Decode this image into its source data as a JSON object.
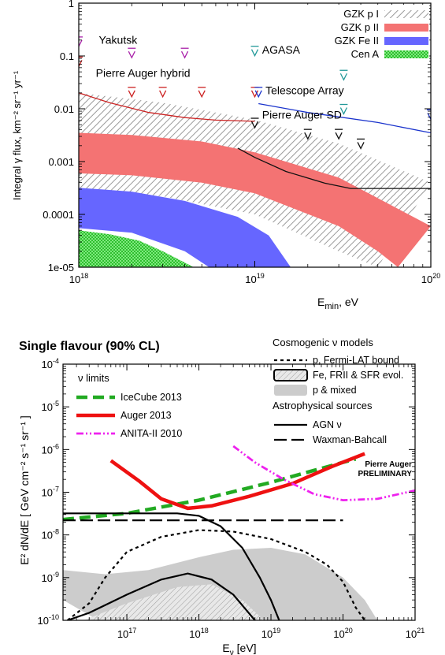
{
  "chart_data": [
    {
      "type": "area",
      "xscale": "log",
      "yscale": "log",
      "xlim": [
        1e+18,
        1e+20
      ],
      "ylim": [
        1e-05,
        1
      ],
      "xlabel": "E",
      "xlabel_sub": "min",
      "xlabel_unit": ", eV",
      "ylabel": "Integral γ flux, km⁻² sr⁻¹ yr⁻¹",
      "xticks": [
        {
          "v": 1e+18,
          "base": "10",
          "exp": "18"
        },
        {
          "v": 1e+19,
          "base": "10",
          "exp": "19"
        },
        {
          "v": 1e+20,
          "base": "10",
          "exp": "20"
        }
      ],
      "yticks": [
        {
          "v": 1,
          "label": "1"
        },
        {
          "v": 0.1,
          "label": "0.1"
        },
        {
          "v": 0.01,
          "label": "0.01"
        },
        {
          "v": 0.001,
          "label": "0.001"
        },
        {
          "v": 0.0001,
          "label": "0.0001"
        },
        {
          "v": 1e-05,
          "label": "1e-05"
        }
      ],
      "legend_position": "top-right",
      "bands": [
        {
          "name": "GZK p I",
          "color": "#b0b0b0",
          "fill": "hatch",
          "upper": [
            [
              1e+18,
              0.02
            ],
            [
              3e+18,
              0.013
            ],
            [
              1e+19,
              0.0062
            ],
            [
              3e+19,
              0.0022
            ],
            [
              1e+20,
              0.0004
            ]
          ],
          "lower": [
            [
              1e+18,
              0.00028
            ],
            [
              3e+18,
              0.00022
            ],
            [
              1e+19,
              0.0001
            ],
            [
              3e+19,
              2e-05
            ],
            [
              5e+19,
              1e-05
            ]
          ]
        },
        {
          "name": "GZK p II",
          "color": "#f47373",
          "fill": "solid",
          "upper": [
            [
              1e+18,
              0.0035
            ],
            [
              2e+18,
              0.0032
            ],
            [
              5e+18,
              0.0024
            ],
            [
              1e+19,
              0.0015
            ],
            [
              3e+19,
              0.0005
            ],
            [
              1e+20,
              6e-05
            ]
          ],
          "lower": [
            [
              1e+18,
              0.0006
            ],
            [
              2e+18,
              0.00055
            ],
            [
              5e+18,
              0.0004
            ],
            [
              1e+19,
              0.00025
            ],
            [
              3e+19,
              6e-05
            ],
            [
              5e+19,
              2e-05
            ],
            [
              6.5e+19,
              1e-05
            ]
          ]
        },
        {
          "name": "GZK Fe II",
          "color": "#6666ff",
          "fill": "solid",
          "upper": [
            [
              1e+18,
              0.00032
            ],
            [
              2e+18,
              0.00027
            ],
            [
              4e+18,
              0.00018
            ],
            [
              8e+18,
              9e-05
            ],
            [
              1.2e+19,
              4e-05
            ],
            [
              1.6e+19,
              1e-05
            ]
          ],
          "lower": [
            [
              1e+18,
              5.5e-05
            ],
            [
              2e+18,
              4.5e-05
            ],
            [
              4e+18,
              2e-05
            ],
            [
              5.5e+18,
              1e-05
            ]
          ]
        },
        {
          "name": "Cen A",
          "color": "#44dd44",
          "fill": "crosshatch",
          "upper": [
            [
              1e+18,
              5e-05
            ],
            [
              1.5e+18,
              4.2e-05
            ],
            [
              2.2e+18,
              3.2e-05
            ],
            [
              3e+18,
              2e-05
            ],
            [
              4.5e+18,
              1e-05
            ]
          ],
          "lower": [
            [
              1e+18,
              1e-05
            ],
            [
              4.5e+18,
              1e-05
            ]
          ]
        }
      ],
      "limit_curves": [
        {
          "name": "Pierre Auger hybrid",
          "color": "#cc2222",
          "points": [
            [
              1e+18,
              0.02
            ],
            [
              1.5e+18,
              0.013
            ],
            [
              2.5e+18,
              0.0085
            ],
            [
              4e+18,
              0.0068
            ],
            [
              6e+18,
              0.0061
            ],
            [
              1e+19,
              0.0058
            ]
          ]
        },
        {
          "name": "Telescope Array",
          "color": "#1a33cc",
          "points": [
            [
              1.05e+19,
              0.0125
            ],
            [
              2e+19,
              0.0085
            ],
            [
              5e+19,
              0.0055
            ],
            [
              1e+20,
              0.0035
            ]
          ]
        },
        {
          "name": "Pierre Auger SD",
          "color": "#111111",
          "points": [
            [
              8e+18,
              0.0018
            ],
            [
              1e+19,
              0.0012
            ],
            [
              1.5e+19,
              0.00065
            ],
            [
              2.5e+19,
              0.00039
            ],
            [
              3.5e+19,
              0.00031
            ],
            [
              1e+20,
              0.00031
            ]
          ]
        }
      ],
      "upper_limits": [
        {
          "experiment": "Yakutsk",
          "color": "#aa22aa",
          "points": [
            [
              1e+18,
              0.18
            ],
            [
              2e+18,
              0.11
            ],
            [
              4e+18,
              0.11
            ]
          ]
        },
        {
          "experiment": "AGASA",
          "color": "#229999",
          "points": [
            [
              1e+19,
              0.12
            ],
            [
              3.2e+19,
              0.042
            ],
            [
              3.2e+19,
              0.0095
            ]
          ]
        },
        {
          "experiment": "Pierre Auger hybrid",
          "color": "#cc2222",
          "points": [
            [
              1e+18,
              0.075
            ],
            [
              2e+18,
              0.02
            ],
            [
              3e+18,
              0.02
            ],
            [
              5e+18,
              0.02
            ],
            [
              1e+19,
              0.02
            ]
          ]
        },
        {
          "experiment": "Telescope Array",
          "color": "#1a33cc",
          "points": [
            [
              1.05e+19,
              0.02
            ],
            [
              1e+20,
              0.0075
            ]
          ]
        },
        {
          "experiment": "Pierre Auger SD",
          "color": "#111111",
          "points": [
            [
              1e+19,
              0.0052
            ],
            [
              2e+19,
              0.0032
            ],
            [
              3e+19,
              0.0032
            ],
            [
              4e+19,
              0.0021
            ]
          ]
        }
      ],
      "annotations": [
        {
          "text": "Yakutsk",
          "color": "#aa22aa",
          "at": [
            1.3e+18,
            0.17
          ]
        },
        {
          "text": "AGASA",
          "color": "#229999",
          "at": [
            1.1e+19,
            0.11
          ]
        },
        {
          "text": "Pierre Auger hybrid",
          "color": "#cc2222",
          "at": [
            1.25e+18,
            0.04
          ]
        },
        {
          "text": "Telescope Array",
          "color": "#1a33cc",
          "at": [
            1.15e+19,
            0.019
          ]
        },
        {
          "text": "Pierre Auger SD",
          "color": "#111111",
          "at": [
            1.1e+19,
            0.0065
          ]
        }
      ]
    },
    {
      "type": "line",
      "title": "Single flavour (90% CL)",
      "xscale": "log",
      "yscale": "log",
      "xlim": [
        1.3e+16,
        1e+21
      ],
      "ylim": [
        1e-10,
        0.0001
      ],
      "xlabel": "E",
      "xlabel_sub": "ν",
      "xlabel_unit": " [eV]",
      "ylabel": "E² dN/dE [ GeV cm⁻² s⁻¹ sr⁻¹ ]",
      "xticks": [
        {
          "v": 1e+17,
          "base": "10",
          "exp": "17"
        },
        {
          "v": 1e+18,
          "base": "10",
          "exp": "18"
        },
        {
          "v": 1e+19,
          "base": "10",
          "exp": "19"
        },
        {
          "v": 1e+20,
          "base": "10",
          "exp": "20"
        },
        {
          "v": 1e+21,
          "base": "10",
          "exp": "21"
        }
      ],
      "yticks": [
        {
          "v": 1e-10,
          "base": "10",
          "exp": "-10"
        },
        {
          "v": 1e-09,
          "base": "10",
          "exp": "-9"
        },
        {
          "v": 1e-08,
          "base": "10",
          "exp": "-8"
        },
        {
          "v": 1e-07,
          "base": "10",
          "exp": "-7"
        },
        {
          "v": 1e-06,
          "base": "10",
          "exp": "-6"
        },
        {
          "v": 1e-05,
          "base": "10",
          "exp": "-5"
        },
        {
          "v": 0.0001,
          "base": "10",
          "exp": "-4"
        }
      ],
      "legend_limits_title": "ν limits",
      "legend_models_title": "Cosmogenic ν models",
      "legend_sources_title": "Astrophysical sources",
      "preliminary_label": [
        "Pierre Auger",
        "PRELIMINARY"
      ],
      "preliminary_color": "#dd1111",
      "series": [
        {
          "name": "IceCube 2013",
          "color": "#22aa22",
          "style": "dashed",
          "points": [
            [
              1.3e+16,
              2.3e-08
            ],
            [
              1e+17,
              3.2e-08
            ],
            [
              1e+18,
              6.5e-08
            ],
            [
              1e+19,
              1.7e-07
            ],
            [
              1e+20,
              5e-07
            ],
            [
              1.5e+20,
              6e-07
            ]
          ]
        },
        {
          "name": "Auger 2013",
          "color": "#ee1111",
          "style": "solid",
          "points": [
            [
              6e+16,
              5.5e-07
            ],
            [
              1.5e+17,
              1.8e-07
            ],
            [
              3e+17,
              7e-08
            ],
            [
              7e+17,
              4.2e-08
            ],
            [
              1.5e+18,
              4.8e-08
            ],
            [
              5e+18,
              8e-08
            ],
            [
              2e+19,
              1.6e-07
            ],
            [
              7e+19,
              4e-07
            ],
            [
              2e+20,
              8e-07
            ]
          ]
        },
        {
          "name": "ANITA-II 2010",
          "color": "#ee22ee",
          "style": "dashdot",
          "points": [
            [
              3e+18,
              1.2e-06
            ],
            [
              6e+18,
              5e-07
            ],
            [
              1.5e+19,
              2e-07
            ],
            [
              4e+19,
              9e-08
            ],
            [
              1e+20,
              6.5e-08
            ],
            [
              3e+20,
              7e-08
            ],
            [
              1e+21,
              1.1e-07
            ]
          ]
        },
        {
          "name": "p, Fermi-LAT bound",
          "color": "#000000",
          "style": "dotted",
          "points": [
            [
              1.5e+16,
              1e-10
            ],
            [
              3e+16,
              2.5e-10
            ],
            [
              5e+16,
              1e-09
            ],
            [
              1e+17,
              4e-09
            ],
            [
              3e+17,
              9e-09
            ],
            [
              1e+18,
              1.3e-08
            ],
            [
              3e+18,
              1.2e-08
            ],
            [
              1e+19,
              8e-09
            ],
            [
              3e+19,
              4e-09
            ],
            [
              6e+19,
              2e-09
            ],
            [
              1e+20,
              8e-10
            ],
            [
              1.5e+20,
              2e-10
            ],
            [
              2e+20,
              1e-10
            ]
          ]
        },
        {
          "name": "AGN ν",
          "color": "#000000",
          "style": "solid",
          "points": [
            [
              1.3e+16,
              3.2e-08
            ],
            [
              1e+17,
              3.2e-08
            ],
            [
              5e+17,
              3.2e-08
            ],
            [
              1e+18,
              2.8e-08
            ],
            [
              2e+18,
              1.6e-08
            ],
            [
              4e+18,
              5e-09
            ],
            [
              7e+18,
              1e-09
            ],
            [
              1e+19,
              3e-10
            ],
            [
              1.3e+19,
              1e-10
            ]
          ]
        },
        {
          "name": "AGN ν (lower)",
          "color": "#000000",
          "style": "solid",
          "points": [
            [
              1.5e+16,
              1e-10
            ],
            [
              3e+16,
              1.5e-10
            ],
            [
              1e+17,
              4e-10
            ],
            [
              3e+17,
              9e-10
            ],
            [
              7e+17,
              1.25e-09
            ],
            [
              1.5e+18,
              9e-10
            ],
            [
              3e+18,
              4e-10
            ],
            [
              6e+18,
              1e-10
            ]
          ]
        },
        {
          "name": "Waxman-Bahcall",
          "color": "#000000",
          "style": "longdash",
          "points": [
            [
              1.3e+16,
              2.2e-08
            ],
            [
              1e+20,
              2.2e-08
            ]
          ]
        }
      ],
      "bands": [
        {
          "name": "p & mixed",
          "color": "#cccccc",
          "fill": "solid",
          "upper": [
            [
              1.3e+16,
              1.5e-09
            ],
            [
              5e+16,
              1.2e-09
            ],
            [
              2e+17,
              1.5e-09
            ],
            [
              1e+18,
              3e-09
            ],
            [
              3e+18,
              4.5e-09
            ],
            [
              1e+19,
              5e-09
            ],
            [
              3e+19,
              3.5e-09
            ],
            [
              1e+20,
              1e-09
            ],
            [
              2e+20,
              3e-10
            ],
            [
              3e+20,
              1e-10
            ]
          ],
          "lower": [
            [
              1.3e+16,
              3e-10
            ],
            [
              4e+16,
              1e-10
            ],
            [
              3e+19,
              1e-10
            ]
          ]
        },
        {
          "name": "Fe, FRII & SFR evol.",
          "color": "#aaaaaa",
          "fill": "hatch",
          "upper": [
            [
              2.5e+16,
              1e-10
            ],
            [
              1e+17,
              2.5e-10
            ],
            [
              5e+17,
              6e-10
            ],
            [
              1.5e+18,
              7e-10
            ],
            [
              4e+18,
              3e-10
            ],
            [
              8e+18,
              1e-10
            ]
          ],
          "lower": [
            [
              2.5e+16,
              1e-10
            ],
            [
              8e+18,
              1e-10
            ]
          ]
        }
      ]
    }
  ]
}
